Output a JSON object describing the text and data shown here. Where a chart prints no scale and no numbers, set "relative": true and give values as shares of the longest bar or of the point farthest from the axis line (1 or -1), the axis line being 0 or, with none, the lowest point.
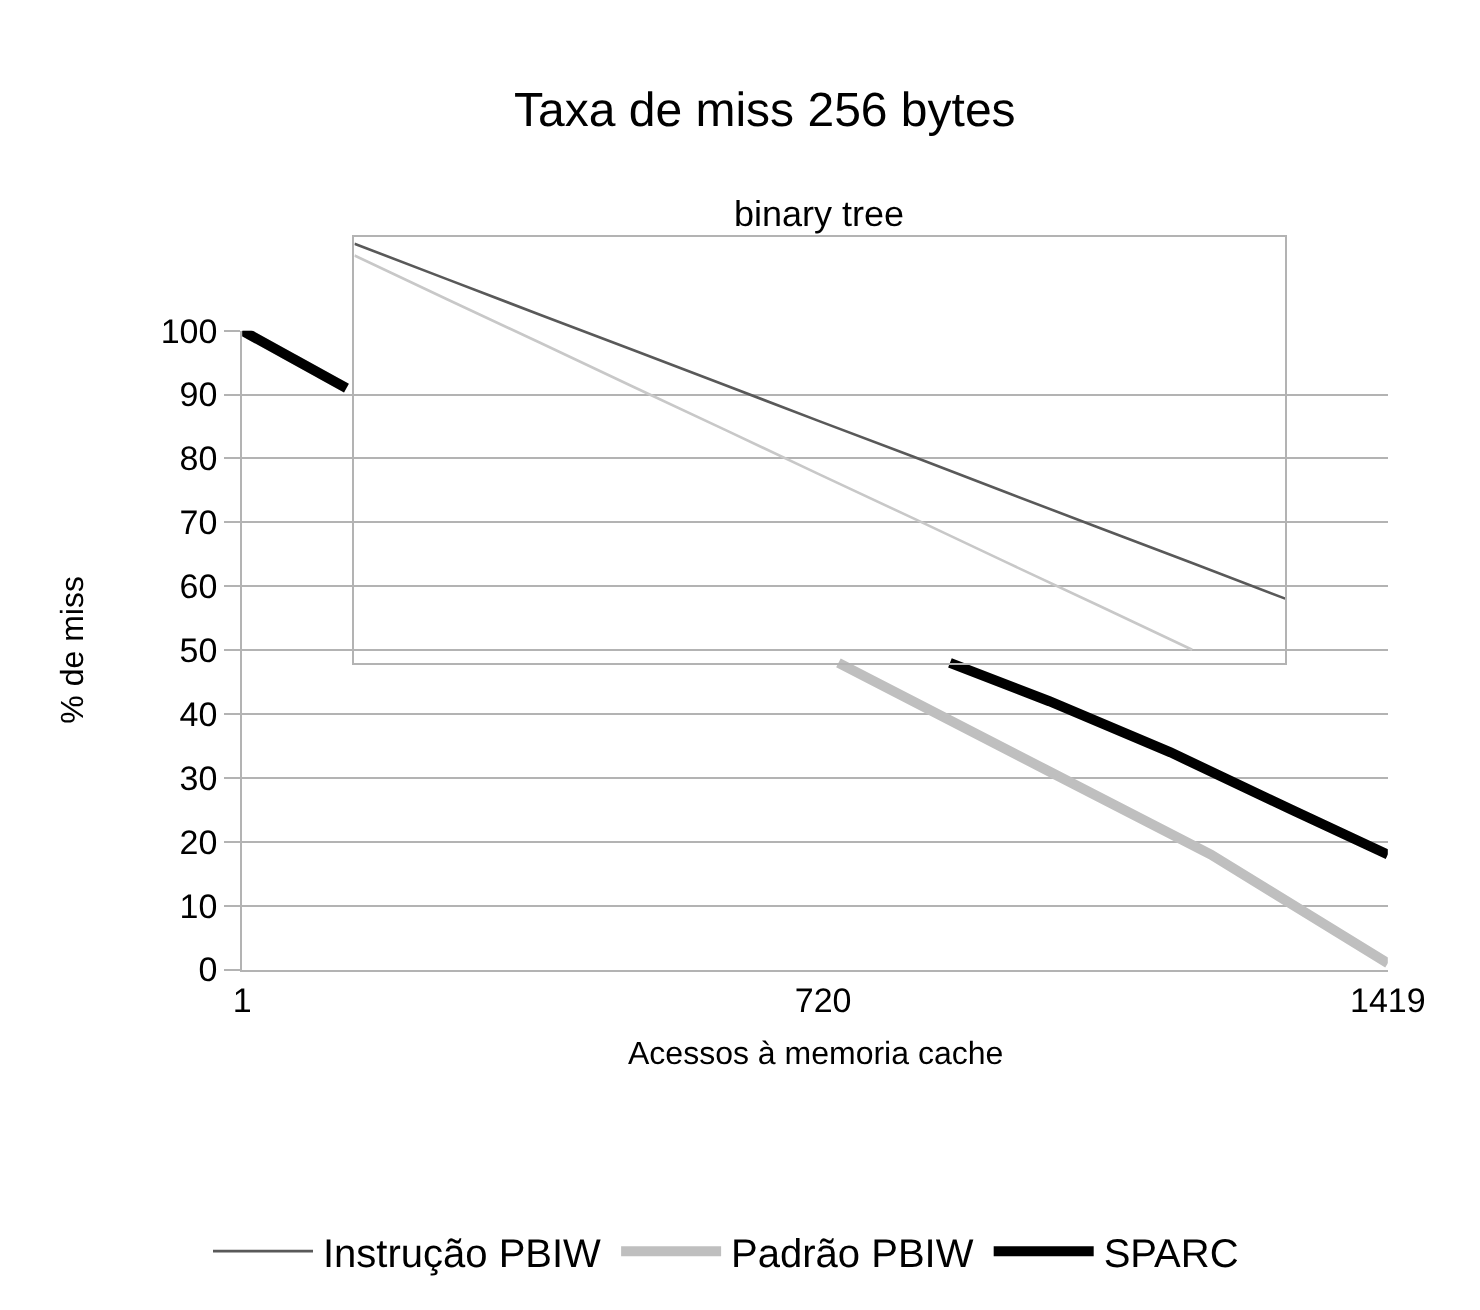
{
  "chart_data": [
    {
      "type": "line",
      "title": "Taxa de miss 256 bytes",
      "xlabel": "Acessos à memoria cache",
      "ylabel": "% de miss",
      "xlim": [
        1,
        1419
      ],
      "xticks": [
        1,
        720,
        1419
      ],
      "ylim": [
        0,
        100
      ],
      "yticks": [
        0,
        10,
        20,
        30,
        40,
        50,
        60,
        70,
        80,
        90,
        100
      ],
      "grid": "y",
      "legend": "bottom",
      "series": [
        {
          "name": "Padrão PBIW",
          "color": "#bfbfbf",
          "x": [
            1,
            130,
            400,
            739,
            1000,
            1200,
            1419
          ],
          "values": [
            100,
            91,
            null,
            48,
            31,
            18,
            1
          ]
        },
        {
          "name": "SPARC",
          "color": "#000000",
          "x": [
            1,
            130,
            500,
            877,
            1000,
            1150,
            1300,
            1419
          ],
          "values": [
            100,
            91,
            null,
            48,
            42,
            34,
            25,
            18
          ]
        }
      ]
    },
    {
      "type": "line",
      "title": "binary tree",
      "relative": true,
      "categories": [
        null,
        null,
        null,
        null,
        null,
        null,
        null,
        null,
        null,
        null,
        null
      ],
      "series": [
        {
          "name": "Instrução PBIW",
          "color": "#595959",
          "values": [
            1.0,
            0.915,
            0.83,
            0.746,
            0.661,
            0.576,
            0.492,
            0.407,
            0.322,
            0.238,
            0.153
          ]
        },
        {
          "name": "Padrão PBIW",
          "color": "#c8c8c8",
          "values": [
            0.972,
            0.867,
            0.763,
            0.658,
            0.554,
            0.449,
            0.345,
            0.24,
            0.136,
            0.031,
            null
          ]
        }
      ]
    }
  ]
}
